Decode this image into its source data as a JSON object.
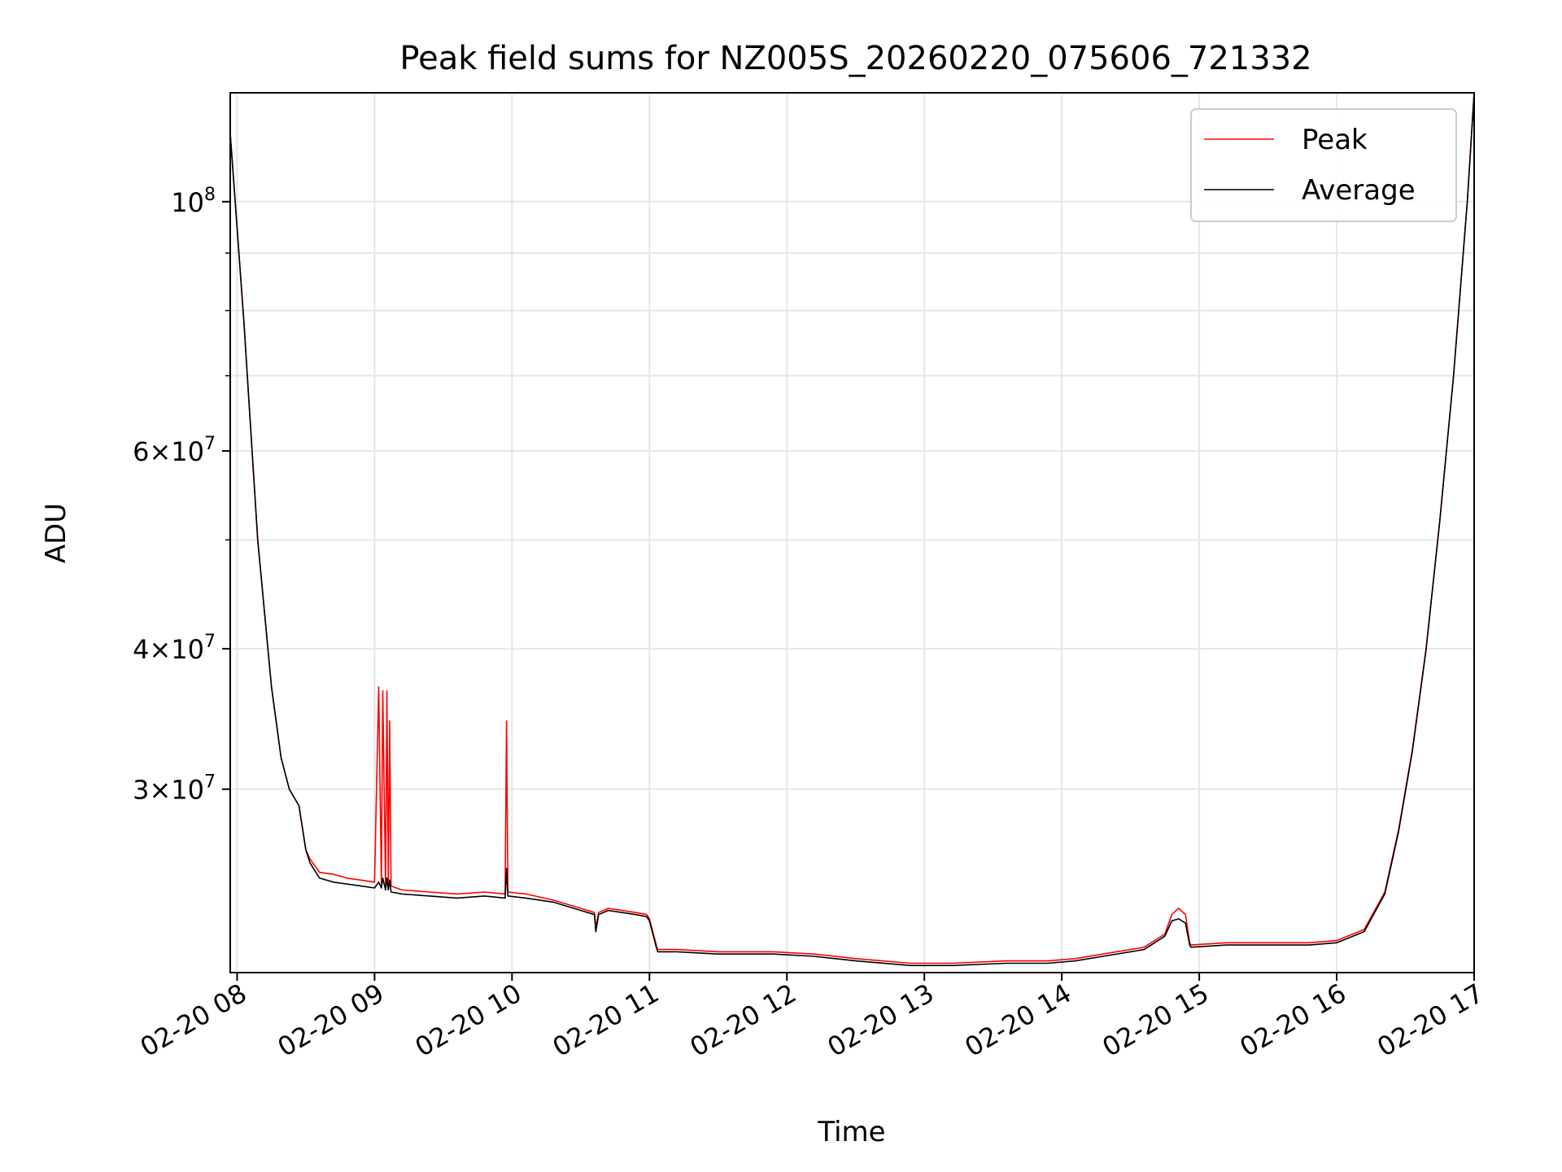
{
  "chart_data": {
    "type": "line",
    "title": "Peak field sums for NZ005S_20260220_075606_721332",
    "xlabel": "Time",
    "ylabel": "ADU",
    "yscale": "log",
    "grid": true,
    "legend": "top-right",
    "x_range_hours": [
      7.95,
      17.0
    ],
    "ylim": [
      20600000,
      125000000
    ],
    "x_ticks": [
      {
        "hour": 8,
        "label": "02-20 08"
      },
      {
        "hour": 9,
        "label": "02-20 09"
      },
      {
        "hour": 10,
        "label": "02-20 10"
      },
      {
        "hour": 11,
        "label": "02-20 11"
      },
      {
        "hour": 12,
        "label": "02-20 12"
      },
      {
        "hour": 13,
        "label": "02-20 13"
      },
      {
        "hour": 14,
        "label": "02-20 14"
      },
      {
        "hour": 15,
        "label": "02-20 15"
      },
      {
        "hour": 16,
        "label": "02-20 16"
      },
      {
        "hour": 17,
        "label": "02-20 17"
      }
    ],
    "y_ticks": [
      {
        "value": 30000000,
        "mant": "3×10",
        "exp": "7"
      },
      {
        "value": 40000000,
        "mant": "4×10",
        "exp": "7"
      },
      {
        "value": 60000000,
        "mant": "6×10",
        "exp": "7"
      },
      {
        "value": 100000000,
        "mant": "10",
        "exp": "8"
      }
    ],
    "y_minor_ticks": [
      50000000,
      70000000,
      80000000,
      90000000
    ],
    "series": [
      {
        "name": "Peak",
        "color": "#ff0000",
        "x": [
          7.95,
          8.05,
          8.15,
          8.25,
          8.32,
          8.38,
          8.45,
          8.5,
          8.53,
          8.6,
          8.7,
          8.8,
          8.9,
          9.0,
          9.03,
          9.05,
          9.06,
          9.08,
          9.09,
          9.1,
          9.11,
          9.12,
          9.2,
          9.4,
          9.6,
          9.8,
          9.95,
          9.96,
          9.97,
          10.1,
          10.3,
          10.5,
          10.6,
          10.61,
          10.63,
          10.7,
          10.9,
          10.98,
          11.0,
          11.05,
          11.06,
          11.2,
          11.5,
          11.9,
          12.2,
          12.5,
          12.9,
          13.2,
          13.6,
          13.9,
          14.1,
          14.3,
          14.6,
          14.75,
          14.8,
          14.85,
          14.9,
          14.93,
          14.94,
          15.2,
          15.5,
          15.8,
          16.0,
          16.2,
          16.35,
          16.45,
          16.55,
          16.65,
          16.75,
          16.85,
          16.95,
          17.0
        ],
        "y": [
          115000000,
          78000000,
          50000000,
          37000000,
          32000000,
          30000000,
          29000000,
          26500000,
          26000000,
          25300000,
          25200000,
          25000000,
          24900000,
          24800000,
          37000000,
          24700000,
          36700000,
          24600000,
          36700000,
          24700000,
          34500000,
          24600000,
          24400000,
          24300000,
          24200000,
          24300000,
          24200000,
          34500000,
          24300000,
          24200000,
          23900000,
          23500000,
          23300000,
          22600000,
          23300000,
          23500000,
          23300000,
          23200000,
          23000000,
          21800000,
          21600000,
          21600000,
          21500000,
          21500000,
          21400000,
          21200000,
          21000000,
          21000000,
          21100000,
          21100000,
          21200000,
          21400000,
          21700000,
          22300000,
          23200000,
          23500000,
          23200000,
          21900000,
          21800000,
          21900000,
          21900000,
          21900000,
          22000000,
          22500000,
          24300000,
          27600000,
          32500000,
          40000000,
          52000000,
          70000000,
          100000000,
          125000000
        ]
      },
      {
        "name": "Average",
        "color": "#000000",
        "x": [
          7.95,
          8.05,
          8.15,
          8.25,
          8.32,
          8.38,
          8.45,
          8.5,
          8.53,
          8.6,
          8.7,
          8.8,
          8.9,
          9.0,
          9.03,
          9.05,
          9.06,
          9.08,
          9.09,
          9.1,
          9.11,
          9.12,
          9.2,
          9.4,
          9.6,
          9.8,
          9.95,
          9.96,
          9.97,
          10.1,
          10.3,
          10.5,
          10.6,
          10.61,
          10.63,
          10.7,
          10.9,
          10.98,
          11.0,
          11.05,
          11.06,
          11.2,
          11.5,
          11.9,
          12.2,
          12.5,
          12.9,
          13.2,
          13.6,
          13.9,
          14.1,
          14.3,
          14.6,
          14.75,
          14.8,
          14.85,
          14.9,
          14.93,
          14.94,
          15.2,
          15.5,
          15.8,
          16.0,
          16.2,
          16.35,
          16.45,
          16.55,
          16.65,
          16.75,
          16.85,
          16.95,
          17.0
        ],
        "y": [
          115000000,
          78000000,
          50000000,
          37000000,
          32000000,
          30000000,
          29000000,
          26500000,
          25800000,
          25000000,
          24800000,
          24700000,
          24600000,
          24500000,
          24800000,
          24500000,
          25000000,
          24400000,
          25000000,
          24400000,
          24900000,
          24300000,
          24200000,
          24100000,
          24000000,
          24100000,
          24000000,
          25500000,
          24100000,
          24000000,
          23800000,
          23400000,
          23200000,
          22400000,
          23200000,
          23400000,
          23200000,
          23100000,
          22900000,
          21700000,
          21500000,
          21500000,
          21400000,
          21400000,
          21300000,
          21100000,
          20900000,
          20900000,
          21000000,
          21000000,
          21100000,
          21300000,
          21600000,
          22200000,
          22900000,
          23000000,
          22800000,
          21800000,
          21700000,
          21800000,
          21800000,
          21800000,
          21900000,
          22400000,
          24200000,
          27500000,
          32400000,
          39900000,
          52000000,
          70000000,
          100000000,
          125000000
        ]
      }
    ]
  }
}
